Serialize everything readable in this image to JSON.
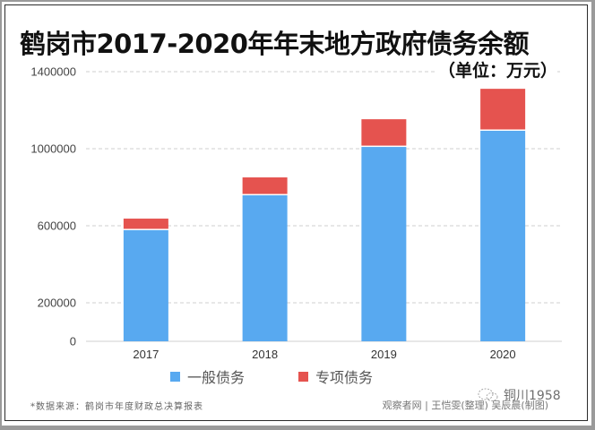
{
  "chart_data": {
    "type": "bar",
    "stacked": true,
    "title": "鹤岗市2017-2020年年末地方政府债务余额",
    "subtitle": "（单位：万元）",
    "categories": [
      "2017",
      "2018",
      "2019",
      "2020"
    ],
    "series": [
      {
        "name": "一般债务",
        "color": "#58A9F0",
        "values": [
          577000,
          758000,
          1009000,
          1093000
        ]
      },
      {
        "name": "专项债务",
        "color": "#E5534F",
        "values": [
          60000,
          93000,
          144000,
          218000
        ]
      }
    ],
    "yticks": [
      0,
      200000,
      600000,
      1000000,
      1400000
    ],
    "ytick_labels": [
      "0",
      "200000",
      "600000",
      "1000000",
      "1400000"
    ],
    "ylim": [
      0,
      1400000
    ],
    "xlabel": "",
    "ylabel": "",
    "grid": true,
    "legend_position": "bottom"
  },
  "footer": {
    "source": "*数据来源：鹤岗市年度财政总决算报表",
    "credit": "观察者网 | 王恺雯(整理) 吴辰晨(制图)",
    "watermark": "铜川1958"
  }
}
